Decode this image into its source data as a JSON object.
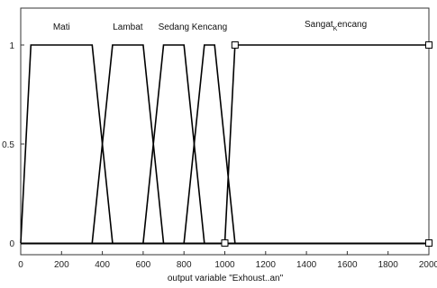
{
  "chart_data": {
    "type": "line",
    "title": "",
    "xlabel": "output variable \"Exhoust..an\"",
    "ylabel": "",
    "xlim": [
      0,
      2000
    ],
    "ylim": [
      0,
      1
    ],
    "grid": false,
    "x_ticks": [
      0,
      200,
      400,
      600,
      800,
      1000,
      1200,
      1400,
      1600,
      1800,
      2000
    ],
    "y_ticks": [
      0,
      0.5,
      1
    ],
    "line_color": "#000000",
    "series": [
      {
        "name": "Mati",
        "x": [
          0,
          50,
          350,
          450
        ],
        "y": [
          0,
          1,
          1,
          0
        ]
      },
      {
        "name": "Lambat",
        "x": [
          350,
          450,
          600,
          700
        ],
        "y": [
          0,
          1,
          1,
          0
        ]
      },
      {
        "name": "Sedang",
        "x": [
          600,
          700,
          800,
          900
        ],
        "y": [
          0,
          1,
          1,
          0
        ]
      },
      {
        "name": "Kencang",
        "x": [
          800,
          900,
          950,
          1050
        ],
        "y": [
          0,
          1,
          1,
          0
        ]
      },
      {
        "name": "Sangat_kencang",
        "x": [
          1000,
          1050,
          2000
        ],
        "y": [
          0,
          1,
          1
        ],
        "label_display": "Sangat",
        "label_sub": "K",
        "label_tail": "encang"
      }
    ],
    "markers": [
      {
        "x": 1000,
        "y": 0
      },
      {
        "x": 1050,
        "y": 1
      },
      {
        "x": 2000,
        "y": 1
      },
      {
        "x": 2000,
        "y": 0
      }
    ]
  }
}
